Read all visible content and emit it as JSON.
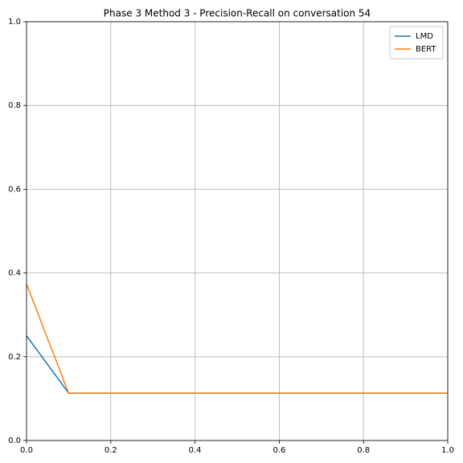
{
  "chart_data": {
    "type": "line",
    "title": "Phase 3 Method 3 - Precision-Recall on conversation 54",
    "x": [
      0,
      0.1,
      1
    ],
    "series": [
      {
        "name": "LMD",
        "color": "#1f77b4",
        "values": [
          0.25,
          0.113,
          0.113
        ]
      },
      {
        "name": "BERT",
        "color": "#ff7f0e",
        "values": [
          0.374,
          0.113,
          0.113
        ]
      }
    ],
    "xlim": [
      0,
      1
    ],
    "ylim": [
      0,
      1
    ],
    "xticks": [
      {
        "value": 0,
        "label": "0.0"
      },
      0.2,
      0.4,
      0.6,
      0.8,
      {
        "value": 1,
        "label": "1.0"
      }
    ],
    "yticks": [
      {
        "value": 0,
        "label": "0.0"
      },
      0.2,
      0.4,
      0.6,
      0.8,
      {
        "value": 1,
        "label": "1.0"
      }
    ],
    "grid": true,
    "legend": "upper right"
  }
}
